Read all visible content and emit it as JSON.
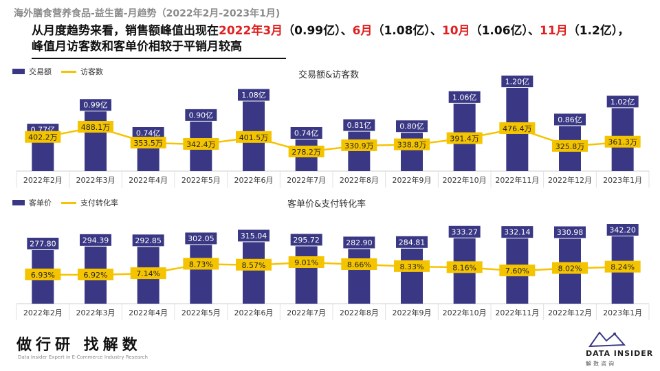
{
  "header": {
    "subtitle": "海外膳食营养食品-益生菌-月趋势（2022年2月-2023年1月)",
    "headline_parts": [
      {
        "text": "从月度趋势来看，销售额峰值出现在",
        "hl": false
      },
      {
        "text": "2022年3月",
        "hl": true
      },
      {
        "text": "（0.99亿）、",
        "hl": false
      },
      {
        "text": "6月",
        "hl": true
      },
      {
        "text": "（1.08亿）、",
        "hl": false
      },
      {
        "text": "10月",
        "hl": true
      },
      {
        "text": "（1.06亿）、",
        "hl": false
      },
      {
        "text": "11月",
        "hl": true
      },
      {
        "text": "（1.2亿）",
        "hl": false
      },
      {
        "text": "，峰值月访客数和客单价相较于平销月较高",
        "hl": false
      }
    ]
  },
  "colors": {
    "bar": "#3a3884",
    "line": "#f5c400",
    "highlight": "#e02020"
  },
  "chart_data": [
    {
      "type": "bar",
      "title": "交易额&访客数",
      "categories": [
        "2022年2月",
        "2022年3月",
        "2022年4月",
        "2022年5月",
        "2022年6月",
        "2022年7月",
        "2022年8月",
        "2022年9月",
        "2022年10月",
        "2022年11月",
        "2022年12月",
        "2023年1月"
      ],
      "series": [
        {
          "name": "交易额",
          "type": "bar",
          "values": [
            0.77,
            0.99,
            0.74,
            0.9,
            1.08,
            0.74,
            0.81,
            0.8,
            1.06,
            1.2,
            0.86,
            1.02
          ],
          "labels": [
            "0.77亿",
            "0.99亿",
            "0.74亿",
            "0.90亿",
            "1.08亿",
            "0.74亿",
            "0.81亿",
            "0.80亿",
            "1.06亿",
            "1.20亿",
            "0.86亿",
            "1.02亿"
          ]
        },
        {
          "name": "访客数",
          "type": "line",
          "values": [
            402.2,
            488.1,
            353.5,
            342.4,
            401.5,
            278.2,
            330.9,
            338.8,
            391.4,
            476.4,
            325.8,
            361.3
          ],
          "labels": [
            "402.2万",
            "488.1万",
            "353.5万",
            "342.4万",
            "401.5万",
            "278.2万",
            "330.9万",
            "338.8万",
            "391.4万",
            "476.4万",
            "325.8万",
            "361.3万"
          ]
        }
      ],
      "legend": "top-left",
      "grid": false
    },
    {
      "type": "bar",
      "title": "客单价&支付转化率",
      "categories": [
        "2022年2月",
        "2022年3月",
        "2022年4月",
        "2022年5月",
        "2022年6月",
        "2022年7月",
        "2022年8月",
        "2022年9月",
        "2022年10月",
        "2022年11月",
        "2022年12月",
        "2023年1月"
      ],
      "series": [
        {
          "name": "客单价",
          "type": "bar",
          "values": [
            277.8,
            294.39,
            292.85,
            302.05,
            315.04,
            295.72,
            282.9,
            284.81,
            333.27,
            332.14,
            330.98,
            342.2
          ],
          "labels": [
            "277.80",
            "294.39",
            "292.85",
            "302.05",
            "315.04",
            "295.72",
            "282.90",
            "284.81",
            "333.27",
            "332.14",
            "330.98",
            "342.20"
          ]
        },
        {
          "name": "支付转化率",
          "type": "line",
          "values": [
            6.93,
            6.92,
            7.14,
            8.73,
            8.57,
            9.01,
            8.66,
            8.33,
            8.16,
            7.6,
            8.02,
            8.24
          ],
          "labels": [
            "6.93%",
            "6.92%",
            "7.14%",
            "8.73%",
            "8.57%",
            "9.01%",
            "8.66%",
            "8.33%",
            "8.16%",
            "7.60%",
            "8.02%",
            "8.24%"
          ]
        }
      ],
      "legend": "top-left",
      "grid": false
    }
  ],
  "footer": {
    "brand_cn": "做行研 找解数",
    "brand_en": "Data Insider Expert in E-Commerce Industry Research",
    "logo_text": "DATA INSIDER",
    "logo_sub": "解数咨询"
  }
}
